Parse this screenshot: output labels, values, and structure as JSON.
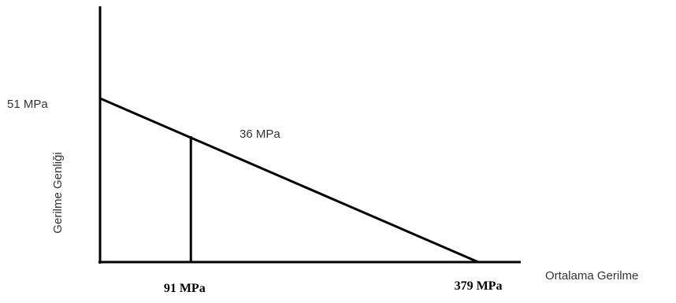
{
  "chart_data": {
    "type": "line",
    "title": "",
    "xlabel": "Ortalama Gerilme",
    "ylabel": "Gerilme Genliği",
    "xlim": [
      0,
      379
    ],
    "ylim": [
      0,
      51
    ],
    "grid": false,
    "series": [
      {
        "x": [
          0,
          379
        ],
        "values": [
          51,
          0
        ]
      }
    ],
    "marker_line": {
      "x": 91,
      "y": 36
    },
    "labels": {
      "y_intercept": "51 MPa",
      "point": "36 MPa",
      "x_marker": "91 MPa",
      "x_intercept": "379 MPa"
    }
  }
}
